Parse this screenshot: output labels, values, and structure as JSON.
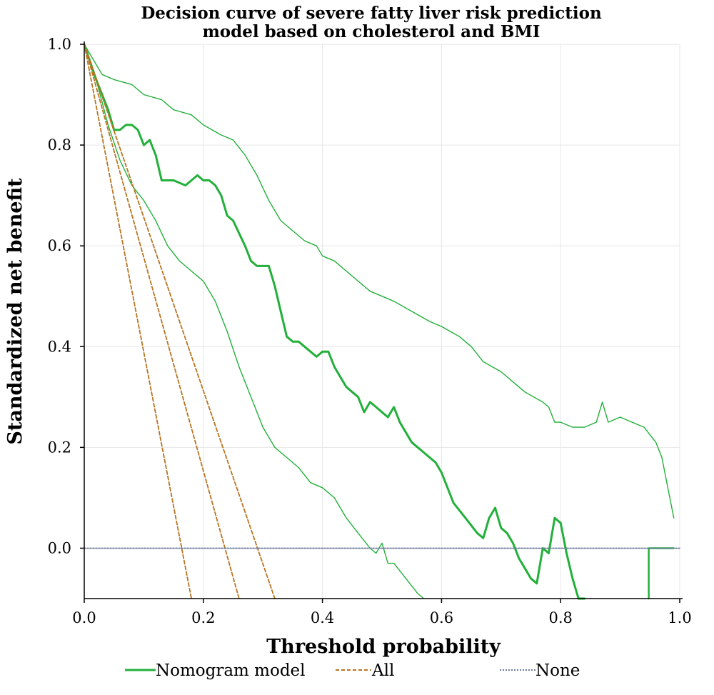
{
  "chart_data": {
    "type": "line",
    "title": "Decision curve of severe fatty liver risk prediction",
    "subtitle": "model based on cholesterol and BMI",
    "xlabel": "Threshold probability",
    "ylabel": "Standardized net benefit",
    "xlim": [
      0,
      1
    ],
    "ylim": [
      -0.1,
      1.0
    ],
    "xticks": [
      "0.0",
      "0.2",
      "0.4",
      "0.6",
      "0.8",
      "1.0"
    ],
    "yticks": [
      "0.0",
      "0.2",
      "0.4",
      "0.6",
      "0.8",
      "1.0"
    ],
    "grid": true,
    "legend": {
      "position": "bottom",
      "entries": [
        {
          "label": "Nomogram model",
          "color": "#22b03a",
          "style": "solid"
        },
        {
          "label": "All",
          "color": "#b87420",
          "style": "dashed"
        },
        {
          "label": "None",
          "color": "#6a7a9a",
          "style": "dotted"
        }
      ]
    },
    "colors": {
      "nomogram": "#22b03a",
      "all": "#b87420",
      "none": "#6a7a9a",
      "grid": "#e6e6e6"
    },
    "series": [
      {
        "name": "Nomogram model",
        "role": "main",
        "x": [
          0.0,
          0.02,
          0.04,
          0.05,
          0.06,
          0.07,
          0.08,
          0.09,
          0.1,
          0.11,
          0.12,
          0.13,
          0.15,
          0.17,
          0.18,
          0.19,
          0.2,
          0.21,
          0.22,
          0.23,
          0.24,
          0.25,
          0.27,
          0.28,
          0.29,
          0.31,
          0.32,
          0.33,
          0.34,
          0.35,
          0.36,
          0.37,
          0.38,
          0.39,
          0.4,
          0.41,
          0.42,
          0.43,
          0.44,
          0.45,
          0.46,
          0.47,
          0.48,
          0.49,
          0.5,
          0.51,
          0.52,
          0.53,
          0.55,
          0.57,
          0.59,
          0.6,
          0.62,
          0.64,
          0.66,
          0.67,
          0.68,
          0.69,
          0.7,
          0.71,
          0.72,
          0.73,
          0.74,
          0.75,
          0.76,
          0.77,
          0.78,
          0.79,
          0.8,
          0.81,
          0.82,
          0.83,
          0.84
        ],
        "y": [
          1.0,
          0.93,
          0.87,
          0.83,
          0.83,
          0.84,
          0.84,
          0.83,
          0.8,
          0.81,
          0.78,
          0.73,
          0.73,
          0.72,
          0.73,
          0.74,
          0.73,
          0.73,
          0.72,
          0.7,
          0.66,
          0.65,
          0.6,
          0.57,
          0.56,
          0.56,
          0.52,
          0.47,
          0.42,
          0.41,
          0.41,
          0.4,
          0.39,
          0.38,
          0.39,
          0.39,
          0.36,
          0.34,
          0.32,
          0.31,
          0.3,
          0.27,
          0.29,
          0.28,
          0.27,
          0.26,
          0.28,
          0.25,
          0.21,
          0.19,
          0.17,
          0.15,
          0.09,
          0.06,
          0.03,
          0.02,
          0.06,
          0.08,
          0.04,
          0.03,
          0.01,
          -0.02,
          -0.04,
          -0.06,
          -0.07,
          0.0,
          -0.01,
          0.06,
          0.05,
          -0.01,
          -0.06,
          -0.1,
          -0.1
        ]
      },
      {
        "name": "",
        "role": "upper_ci",
        "x": [
          0.0,
          0.03,
          0.05,
          0.08,
          0.1,
          0.13,
          0.15,
          0.18,
          0.2,
          0.23,
          0.25,
          0.27,
          0.29,
          0.31,
          0.33,
          0.35,
          0.37,
          0.39,
          0.4,
          0.42,
          0.44,
          0.46,
          0.48,
          0.5,
          0.52,
          0.55,
          0.58,
          0.6,
          0.63,
          0.65,
          0.67,
          0.7,
          0.72,
          0.74,
          0.77,
          0.78,
          0.79,
          0.8,
          0.82,
          0.84,
          0.86,
          0.87,
          0.88,
          0.9,
          0.92,
          0.94,
          0.96,
          0.97,
          0.98,
          0.99
        ],
        "y": [
          1.0,
          0.94,
          0.93,
          0.92,
          0.9,
          0.89,
          0.87,
          0.86,
          0.84,
          0.82,
          0.81,
          0.78,
          0.74,
          0.69,
          0.65,
          0.63,
          0.61,
          0.6,
          0.58,
          0.57,
          0.55,
          0.53,
          0.51,
          0.5,
          0.49,
          0.47,
          0.45,
          0.44,
          0.42,
          0.4,
          0.37,
          0.35,
          0.33,
          0.31,
          0.29,
          0.28,
          0.25,
          0.25,
          0.24,
          0.24,
          0.25,
          0.29,
          0.25,
          0.26,
          0.25,
          0.24,
          0.21,
          0.18,
          0.12,
          0.06
        ]
      },
      {
        "name": "",
        "role": "lower_ci",
        "x": [
          0.0,
          0.02,
          0.04,
          0.06,
          0.08,
          0.1,
          0.12,
          0.14,
          0.16,
          0.18,
          0.2,
          0.22,
          0.24,
          0.26,
          0.28,
          0.3,
          0.32,
          0.34,
          0.36,
          0.38,
          0.4,
          0.42,
          0.44,
          0.46,
          0.48,
          0.49,
          0.5,
          0.51,
          0.52,
          0.54,
          0.56,
          0.57
        ],
        "y": [
          1.0,
          0.93,
          0.84,
          0.77,
          0.72,
          0.69,
          0.65,
          0.6,
          0.57,
          0.55,
          0.53,
          0.49,
          0.43,
          0.36,
          0.3,
          0.24,
          0.2,
          0.18,
          0.16,
          0.13,
          0.12,
          0.1,
          0.06,
          0.03,
          0.0,
          -0.01,
          0.01,
          -0.03,
          -0.03,
          -0.06,
          -0.09,
          -0.1
        ]
      },
      {
        "name": "",
        "role": "step",
        "x": [
          0.948,
          0.948,
          0.99
        ],
        "y": [
          -0.1,
          0.0,
          0.0
        ]
      },
      {
        "name": "All",
        "role": "all",
        "x": [
          0.0,
          0.18
        ],
        "y": [
          1.0,
          -0.1
        ]
      },
      {
        "name": "",
        "role": "all_lower",
        "x": [
          0.0,
          0.26
        ],
        "y": [
          1.0,
          -0.1
        ]
      },
      {
        "name": "",
        "role": "all_upper",
        "x": [
          0.0,
          0.32
        ],
        "y": [
          1.0,
          -0.1
        ]
      },
      {
        "name": "None",
        "role": "none",
        "x": [
          0.0,
          1.0
        ],
        "y": [
          0.0,
          0.0
        ]
      }
    ]
  }
}
